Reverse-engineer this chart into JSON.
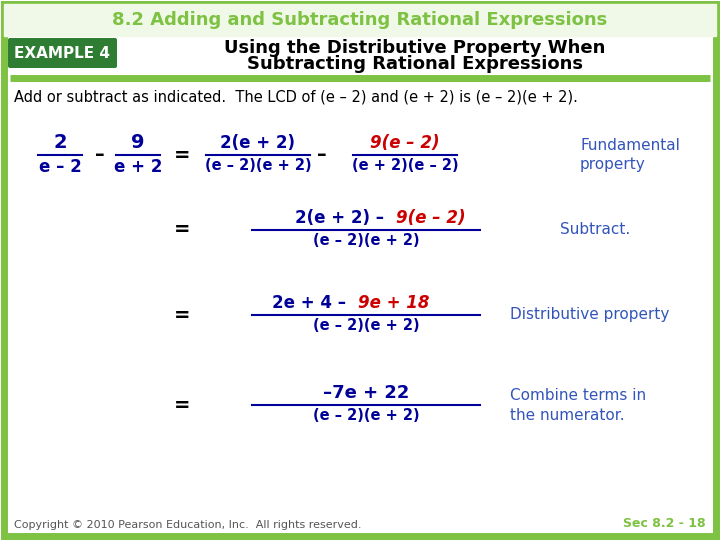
{
  "bg_color": "#ffffff",
  "border_color": "#7dc242",
  "title_text": "8.2 Adding and Subtracting Rational Expressions",
  "title_color": "#7dc242",
  "example_label": "EXAMPLE 4",
  "example_bg": "#2e7d32",
  "example_text_color": "#ffffff",
  "subtitle1": "Using the Distributive Property When",
  "subtitle2": "Subtracting Rational Expressions",
  "subtitle_color": "#000000",
  "divider_color": "#7dc242",
  "intro_text": "Add or subtract as indicated.  The LCD of (e – 2) and (e + 2) is (e – 2)(e + 2).",
  "copyright": "Copyright © 2010 Pearson Education, Inc.  All rights reserved.",
  "sec_ref": "Sec 8.2 - 18",
  "sec_ref_color": "#7dc242",
  "blue": "#000099",
  "red": "#cc0000",
  "label_blue": "#3355bb"
}
